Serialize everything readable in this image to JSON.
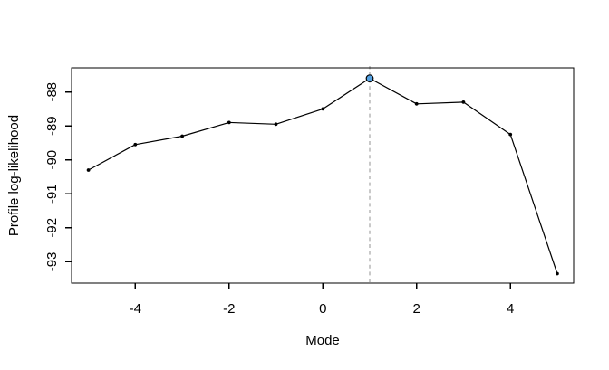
{
  "window": {
    "background": "#ffffff"
  },
  "chart_data": {
    "type": "line",
    "title": "",
    "xlabel": "Mode",
    "ylabel": "Profile log-likelihood",
    "x": [
      -5,
      -4,
      -3,
      -2,
      -1,
      0,
      1,
      2,
      3,
      4,
      5
    ],
    "y": [
      -90.3,
      -89.55,
      -89.3,
      -88.9,
      -88.95,
      -88.5,
      -87.6,
      -88.35,
      -88.3,
      -89.25,
      -93.35
    ],
    "xticks": [
      "-4",
      "-2",
      "0",
      "2",
      "4"
    ],
    "xtick_values": [
      -4,
      -2,
      0,
      2,
      4
    ],
    "yticks": [
      "-88",
      "-89",
      "-90",
      "-91",
      "-92",
      "-93"
    ],
    "ytick_values": [
      -88,
      -89,
      -90,
      -91,
      -92,
      -93
    ],
    "xlim": [
      -5.36,
      5.35
    ],
    "ylim": [
      -93.63,
      -87.29
    ],
    "grid": false,
    "legend": null,
    "line_color": "#000000",
    "marker_color": "#000000",
    "frame_color": "#000000",
    "highlight_point": {
      "x": 1,
      "y": -87.6,
      "fill": "#55a2e3",
      "stroke": "#000000"
    },
    "vline": {
      "x": 1,
      "color": "#c9c9c9",
      "style": "dashed"
    }
  }
}
